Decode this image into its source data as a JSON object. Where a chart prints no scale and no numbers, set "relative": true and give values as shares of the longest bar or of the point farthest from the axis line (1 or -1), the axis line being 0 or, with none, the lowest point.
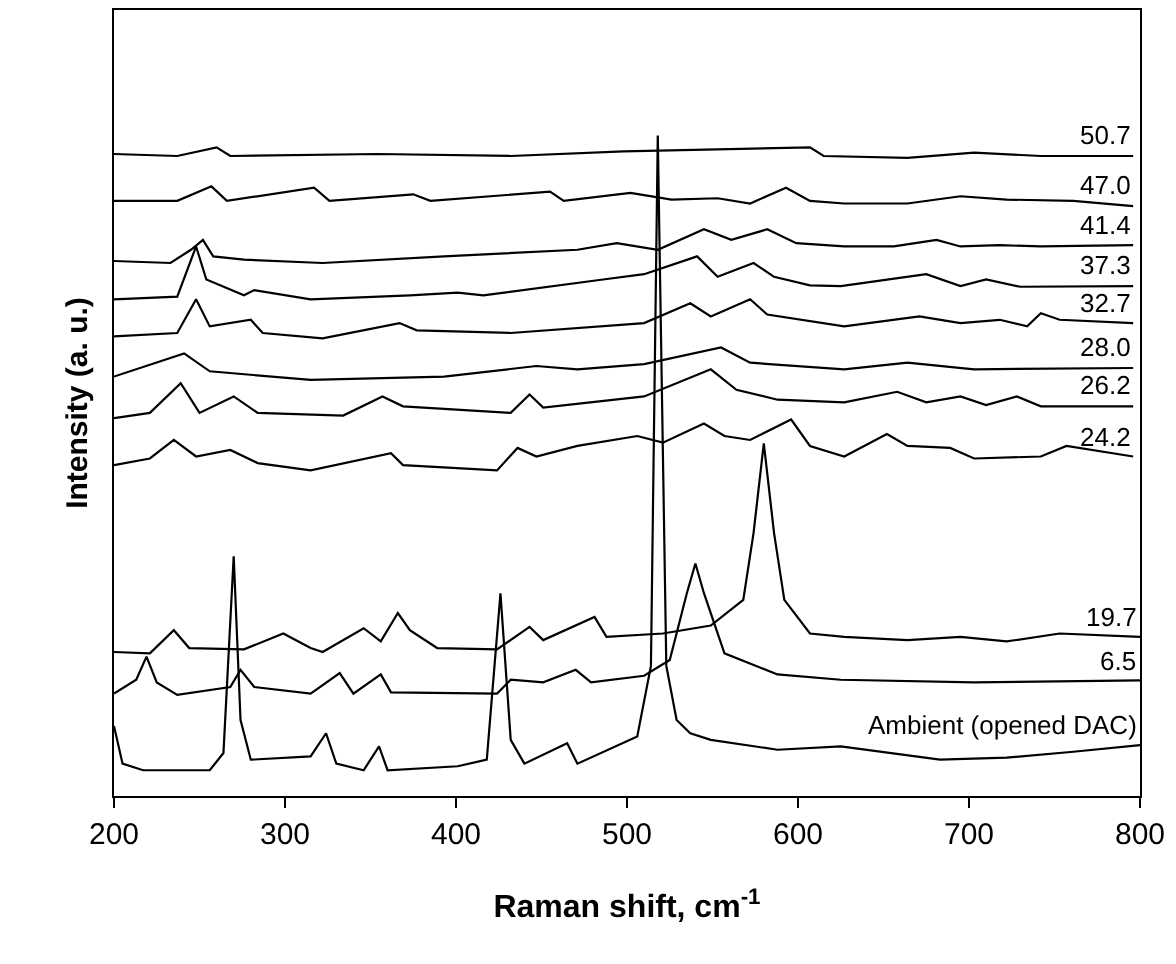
{
  "chart_data": {
    "type": "line",
    "relative": true,
    "xlabel": "Raman shift, cm$^{-1}$",
    "ylabel": "Intensity (a. u.)",
    "xlim": [
      200,
      800
    ],
    "xticks": [
      200,
      300,
      400,
      500,
      600,
      700,
      800
    ],
    "legend": false,
    "marker": "none",
    "line_style": "solid",
    "series": [
      {
        "name": "50.7",
        "color": "#000000",
        "x": [
          200,
          237,
          260,
          268,
          354,
          432,
          498,
          607,
          615,
          664,
          703,
          742,
          796
        ],
        "values": [
          0.972,
          0.969,
          0.982,
          0.969,
          0.972,
          0.969,
          0.976,
          0.982,
          0.969,
          0.966,
          0.974,
          0.969,
          0.969
        ]
      },
      {
        "name": "47.0",
        "color": "#000000",
        "x": [
          200,
          237,
          257,
          266,
          317,
          326,
          375,
          385,
          455,
          463,
          502,
          526,
          553,
          572,
          593,
          607,
          627,
          664,
          695,
          722,
          761,
          796
        ],
        "values": [
          0.901,
          0.901,
          0.923,
          0.901,
          0.921,
          0.901,
          0.911,
          0.901,
          0.915,
          0.901,
          0.913,
          0.903,
          0.905,
          0.897,
          0.921,
          0.901,
          0.897,
          0.897,
          0.908,
          0.903,
          0.901,
          0.893
        ]
      },
      {
        "name": "41.4",
        "color": "#000000",
        "x": [
          200,
          233,
          245,
          252,
          258,
          276,
          322,
          393,
          471,
          494,
          518,
          545,
          561,
          582,
          599,
          627,
          656,
          681,
          695,
          718,
          742,
          796
        ],
        "values": [
          0.81,
          0.807,
          0.827,
          0.842,
          0.817,
          0.812,
          0.807,
          0.817,
          0.827,
          0.837,
          0.827,
          0.858,
          0.842,
          0.858,
          0.837,
          0.832,
          0.832,
          0.842,
          0.832,
          0.834,
          0.832,
          0.834
        ]
      },
      {
        "name": "37.3",
        "color": "#000000",
        "x": [
          200,
          237,
          248,
          254,
          276,
          282,
          315,
          373,
          401,
          416,
          486,
          510,
          541,
          553,
          574,
          586,
          607,
          625,
          675,
          695,
          710,
          730,
          796
        ],
        "values": [
          0.752,
          0.756,
          0.832,
          0.782,
          0.758,
          0.766,
          0.752,
          0.758,
          0.762,
          0.758,
          0.782,
          0.79,
          0.817,
          0.786,
          0.807,
          0.786,
          0.773,
          0.772,
          0.79,
          0.772,
          0.782,
          0.771,
          0.772
        ]
      },
      {
        "name": "32.7",
        "color": "#000000",
        "x": [
          200,
          237,
          248,
          256,
          280,
          287,
          322,
          367,
          377,
          432,
          510,
          537,
          549,
          572,
          582,
          627,
          671,
          695,
          718,
          734,
          742,
          753,
          796
        ],
        "values": [
          0.696,
          0.701,
          0.752,
          0.711,
          0.721,
          0.701,
          0.693,
          0.716,
          0.705,
          0.701,
          0.716,
          0.746,
          0.726,
          0.752,
          0.729,
          0.711,
          0.726,
          0.716,
          0.721,
          0.711,
          0.731,
          0.721,
          0.716
        ]
      },
      {
        "name": "28.0",
        "color": "#000000",
        "x": [
          200,
          241,
          256,
          315,
          393,
          447,
          471,
          510,
          555,
          572,
          627,
          664,
          703,
          796
        ],
        "values": [
          0.635,
          0.67,
          0.643,
          0.63,
          0.635,
          0.651,
          0.646,
          0.654,
          0.679,
          0.656,
          0.646,
          0.656,
          0.646,
          0.648
        ]
      },
      {
        "name": "26.2",
        "color": "#000000",
        "x": [
          200,
          221,
          239,
          250,
          270,
          284,
          334,
          357,
          369,
          432,
          443,
          451,
          510,
          549,
          564,
          588,
          627,
          658,
          675,
          695,
          710,
          728,
          742,
          796
        ],
        "values": [
          0.572,
          0.58,
          0.625,
          0.58,
          0.605,
          0.58,
          0.576,
          0.605,
          0.59,
          0.58,
          0.608,
          0.588,
          0.605,
          0.646,
          0.615,
          0.6,
          0.596,
          0.612,
          0.596,
          0.605,
          0.592,
          0.605,
          0.59,
          0.59
        ]
      },
      {
        "name": "24.2",
        "color": "#000000",
        "x": [
          200,
          221,
          235,
          248,
          268,
          284,
          315,
          362,
          369,
          424,
          436,
          447,
          471,
          506,
          521,
          545,
          557,
          572,
          596,
          607,
          627,
          652,
          664,
          689,
          703,
          742,
          757,
          796
        ],
        "values": [
          0.501,
          0.511,
          0.539,
          0.514,
          0.524,
          0.504,
          0.493,
          0.519,
          0.501,
          0.493,
          0.527,
          0.514,
          0.53,
          0.545,
          0.535,
          0.564,
          0.545,
          0.539,
          0.57,
          0.53,
          0.514,
          0.548,
          0.53,
          0.527,
          0.511,
          0.514,
          0.53,
          0.514
        ]
      },
      {
        "name": "19.7",
        "color": "#000000",
        "x": [
          200,
          221,
          235,
          244,
          276,
          299,
          315,
          322,
          346,
          356,
          366,
          373,
          389,
          424,
          443,
          451,
          481,
          488,
          521,
          549,
          568,
          574,
          580,
          586,
          592,
          607,
          627,
          664,
          695,
          722,
          753,
          800
        ],
        "values": [
          0.218,
          0.216,
          0.251,
          0.224,
          0.222,
          0.246,
          0.224,
          0.218,
          0.254,
          0.234,
          0.277,
          0.251,
          0.224,
          0.222,
          0.256,
          0.236,
          0.271,
          0.241,
          0.246,
          0.258,
          0.297,
          0.398,
          0.534,
          0.398,
          0.297,
          0.246,
          0.241,
          0.236,
          0.241,
          0.234,
          0.246,
          0.241
        ]
      },
      {
        "name": "6.5",
        "color": "#000000",
        "x": [
          200,
          213,
          219,
          225,
          237,
          268,
          274,
          282,
          315,
          332,
          340,
          356,
          362,
          424,
          432,
          451,
          470,
          479,
          510,
          525,
          535,
          540,
          545,
          557,
          588,
          625,
          703,
          800
        ],
        "values": [
          0.155,
          0.176,
          0.211,
          0.172,
          0.153,
          0.165,
          0.191,
          0.165,
          0.155,
          0.186,
          0.155,
          0.184,
          0.157,
          0.155,
          0.176,
          0.172,
          0.191,
          0.172,
          0.182,
          0.206,
          0.307,
          0.352,
          0.307,
          0.216,
          0.184,
          0.176,
          0.172,
          0.175
        ]
      },
      {
        "name": "Ambient (opened DAC)",
        "color": "#000000",
        "x": [
          200,
          205,
          217,
          256,
          264,
          270,
          274,
          280,
          315,
          324,
          330,
          346,
          355,
          360,
          401,
          418,
          426,
          432,
          440,
          465,
          471,
          506,
          514,
          518,
          523,
          529,
          537,
          549,
          588,
          625,
          683,
          722,
          761,
          800
        ],
        "values": [
          0.106,
          0.049,
          0.039,
          0.039,
          0.065,
          0.363,
          0.115,
          0.055,
          0.06,
          0.095,
          0.049,
          0.039,
          0.075,
          0.039,
          0.045,
          0.055,
          0.307,
          0.085,
          0.049,
          0.08,
          0.049,
          0.09,
          0.197,
          1.0,
          0.197,
          0.115,
          0.095,
          0.085,
          0.07,
          0.075,
          0.055,
          0.058,
          0.067,
          0.077
        ]
      }
    ]
  }
}
